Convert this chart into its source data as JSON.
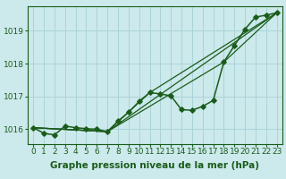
{
  "title": "Graphe pression niveau de la mer (hPa)",
  "bg_color": "#cce9ec",
  "grid_color": "#aad4d8",
  "line_color": "#1a5c1a",
  "text_color": "#1a5c1a",
  "tick_fontsize": 6.5,
  "title_fontsize": 7.5,
  "xlim": [
    -0.5,
    23.5
  ],
  "ylim": [
    1015.55,
    1019.75
  ],
  "yticks": [
    1016,
    1017,
    1018,
    1019
  ],
  "xticks": [
    0,
    1,
    2,
    3,
    4,
    5,
    6,
    7,
    8,
    9,
    10,
    11,
    12,
    13,
    14,
    15,
    16,
    17,
    18,
    19,
    20,
    21,
    22,
    23
  ],
  "series": [
    {
      "x": [
        0,
        1,
        2,
        3,
        4,
        5,
        6,
        7,
        8,
        9,
        10,
        11,
        12,
        13,
        14,
        15,
        16,
        17,
        18,
        19,
        20,
        21,
        22,
        23
      ],
      "y": [
        1016.05,
        1015.88,
        1015.83,
        1016.1,
        1016.05,
        1016.02,
        1016.0,
        1015.93,
        1016.25,
        1016.52,
        1016.85,
        1017.12,
        1017.08,
        1017.02,
        1016.6,
        1016.58,
        1016.7,
        1016.88,
        1018.05,
        1018.55,
        1019.05,
        1019.42,
        1019.48,
        1019.55
      ],
      "marker": "D",
      "markersize": 2.8,
      "lw": 1.1
    },
    {
      "x": [
        0,
        7,
        23
      ],
      "y": [
        1016.05,
        1015.93,
        1019.55
      ],
      "marker": null,
      "lw": 0.9
    },
    {
      "x": [
        0,
        7,
        11,
        23
      ],
      "y": [
        1016.05,
        1015.93,
        1017.12,
        1019.55
      ],
      "marker": null,
      "lw": 0.9
    },
    {
      "x": [
        0,
        7,
        18,
        23
      ],
      "y": [
        1016.05,
        1015.93,
        1018.05,
        1019.55
      ],
      "marker": null,
      "lw": 0.9
    }
  ]
}
